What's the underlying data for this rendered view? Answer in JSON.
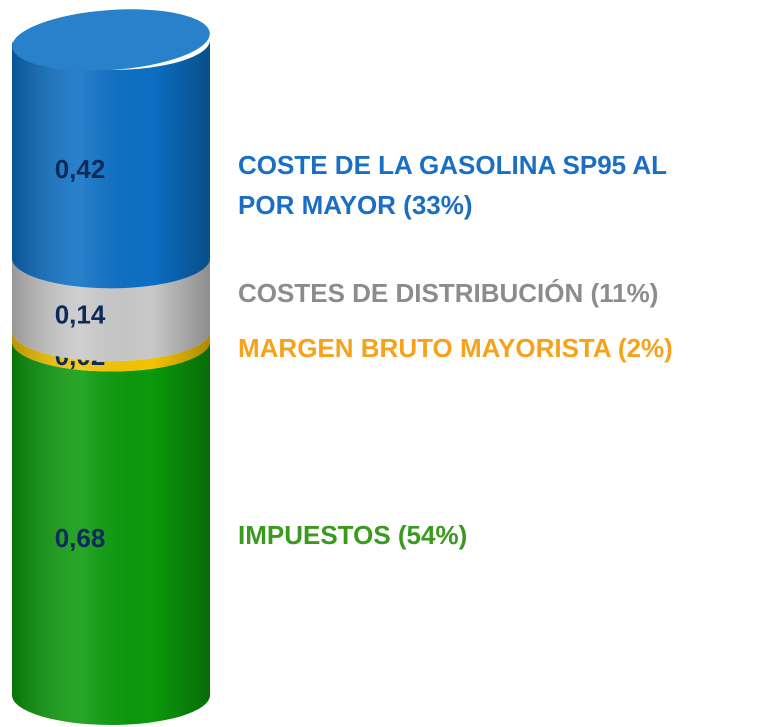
{
  "chart_data": {
    "type": "stacked_cylinder",
    "series": [
      {
        "name": "IMPUESTOS (54%)",
        "color": "#0b9a0b",
        "label_color": "#3a9a1e",
        "values": [
          0.68
        ],
        "value_labels": [
          "0,68"
        ]
      },
      {
        "name": "MARGEN BRUTO MAYORISTA (2%)",
        "color": "#f5c400",
        "label_color": "#f7a21b",
        "values": [
          0.02
        ],
        "value_labels": [
          "0,02"
        ]
      },
      {
        "name": "COSTES DE DISTRIBUCIÓN (11%)",
        "color": "#c9c9c9",
        "label_color": "#8c8c8c",
        "values": [
          0.14
        ],
        "value_labels": [
          "0,14"
        ]
      },
      {
        "name": "COSTE DE LA GASOLINA SP95 AL POR MAYOR (33%)",
        "color": "#0c6fc4",
        "label_color": "#1a6fc4",
        "values": [
          0.42
        ],
        "value_labels": [
          "0,42"
        ]
      }
    ]
  }
}
